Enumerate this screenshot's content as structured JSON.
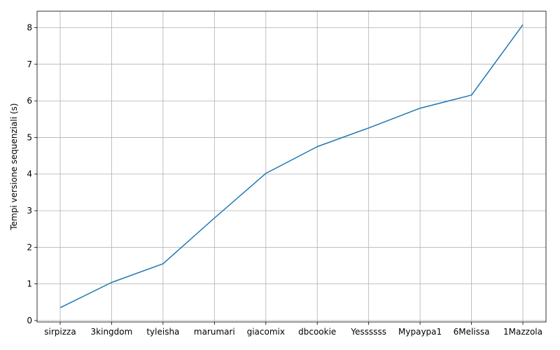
{
  "chart_data": {
    "type": "line",
    "categories": [
      "sirpizza",
      "3kingdom",
      "tyleisha",
      "marumari",
      "giacomix",
      "dbcookie",
      "Yessssss",
      "Mypaypa1",
      "6Melissa",
      "1Mazzola"
    ],
    "series": [
      {
        "values": [
          0.35,
          1.04,
          1.55,
          2.8,
          4.02,
          4.75,
          5.26,
          5.8,
          6.16,
          8.08
        ]
      }
    ],
    "title": "",
    "xlabel": "",
    "ylabel": "Tempi versione sequenziali (s)",
    "ylim": [
      -0.04,
      8.45
    ],
    "yticks": [
      0,
      1,
      2,
      3,
      4,
      5,
      6,
      7,
      8
    ],
    "grid": true,
    "colors": {
      "series": "#1f77b4",
      "grid": "#b0b0b0"
    }
  }
}
